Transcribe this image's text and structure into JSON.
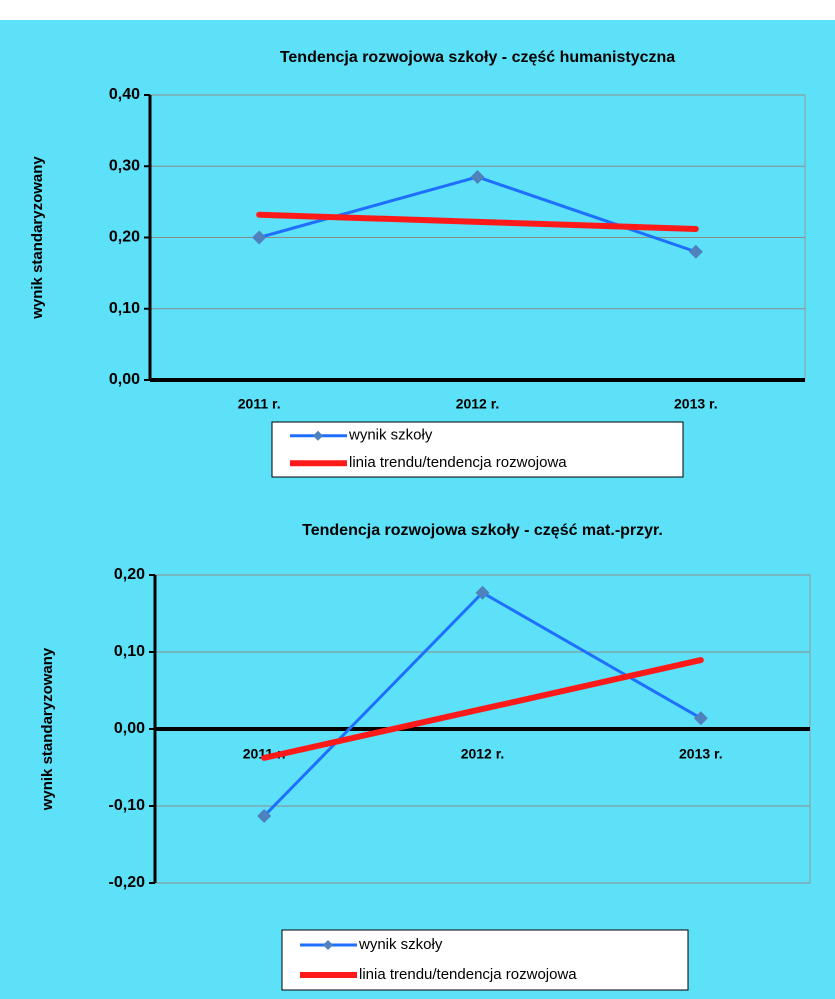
{
  "chart_data": [
    {
      "type": "line",
      "title": "Tendencja rozwojowa szkoły - część humanistyczna",
      "y_label": "wynik standaryzowany",
      "categories": [
        "2011 r.",
        "2012 r.",
        "2013 r."
      ],
      "series": [
        {
          "name": "wynik szkoły",
          "color": "#1f6fff",
          "marker": "diamond",
          "values": [
            0.2,
            0.285,
            0.18
          ]
        },
        {
          "name": "linia trendu/tendencja rozwojowa",
          "color": "#ff1a1a",
          "values": [
            0.232,
            0.222,
            0.212
          ]
        }
      ],
      "ylim": [
        0,
        0.4
      ],
      "yticks": [
        {
          "value": 0,
          "label": "0,00"
        },
        {
          "value": 0.1,
          "label": "0,10"
        },
        {
          "value": 0.2,
          "label": "0,20"
        },
        {
          "value": 0.3,
          "label": "0,30"
        },
        {
          "value": 0.4,
          "label": "0,40"
        }
      ],
      "grid": true
    },
    {
      "type": "line",
      "title": "Tendencja rozwojowa szkoły - część mat.-przyr.",
      "y_label": "wynik standaryzowany",
      "categories": [
        "2011 r.",
        "2012 r.",
        "2013 r."
      ],
      "series": [
        {
          "name": "wynik szkoły",
          "color": "#1f6fff",
          "marker": "diamond",
          "values": [
            -0.113,
            0.177,
            0.014
          ]
        },
        {
          "name": "linia trendu/tendencja rozwojowa",
          "color": "#ff1a1a",
          "values": [
            -0.0375,
            0.026,
            0.0895
          ]
        }
      ],
      "ylim": [
        -0.2,
        0.2
      ],
      "yticks": [
        {
          "value": -0.2,
          "label": "-0,20"
        },
        {
          "value": -0.1,
          "label": "-0,10"
        },
        {
          "value": 0,
          "label": "0,00"
        },
        {
          "value": 0.1,
          "label": "0,10"
        },
        {
          "value": 0.2,
          "label": "0,20"
        }
      ],
      "grid": true
    }
  ]
}
